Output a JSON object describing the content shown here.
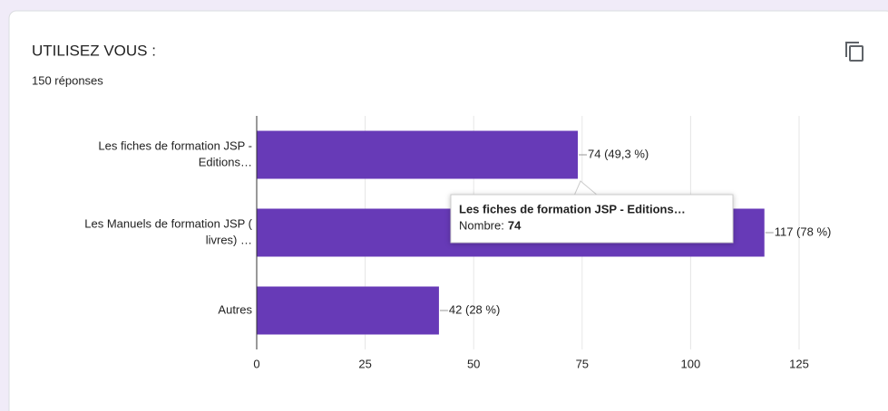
{
  "chart_data": {
    "type": "hbar",
    "title": "UTILISEZ VOUS :",
    "subtitle": "150 réponses",
    "categories": [
      [
        "Les fiches de formation JSP -",
        "Editions…"
      ],
      [
        "Les Manuels de formation JSP (",
        "livres) …"
      ],
      [
        "Autres"
      ]
    ],
    "values": [
      74,
      117,
      42
    ],
    "value_labels": [
      "74 (49,3 %)",
      "117 (78 %)",
      "42 (28 %)"
    ],
    "color": "#673ab7",
    "xlim": [
      0,
      125
    ],
    "xticks": [
      0,
      25,
      50,
      75,
      100,
      125
    ],
    "grid": true,
    "tooltip": {
      "title": "Les fiches de formation JSP - Editions…",
      "label": "Nombre:"
    }
  }
}
